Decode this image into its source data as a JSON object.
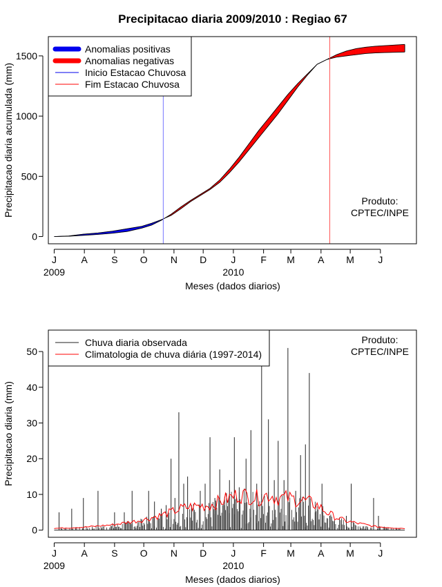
{
  "title": "Precipitacao diaria 2009/2010 : Regiao 67",
  "credit": {
    "line1": "Produto:",
    "line2": "CPTEC/INPE"
  },
  "months": [
    "J",
    "A",
    "S",
    "O",
    "N",
    "D",
    "J",
    "F",
    "M",
    "A",
    "M",
    "J"
  ],
  "years": [
    {
      "label": "2009",
      "month_index": 0
    },
    {
      "label": "2010",
      "month_index": 6
    }
  ],
  "colors": {
    "positive": "#0000ee",
    "negative": "#ff0000",
    "observed": "#222222",
    "climatology": "#ff0000",
    "onset": "#7777ff",
    "end": "#ff5555"
  },
  "chart_data": [
    {
      "type": "area",
      "title": "Precipitacao diaria 2009/2010 : Regiao 67",
      "xlabel": "Meses (dados diarios)",
      "ylabel": "Precipitacao diaria acumulada (mm)",
      "yticks": [
        0,
        500,
        1000,
        1500
      ],
      "ylim": [
        -60,
        1660
      ],
      "xlim_days": [
        -6,
        372
      ],
      "legend": [
        "Anomalias positivas",
        "Anomalias negativas",
        "Inicio Estacao Chuvosa",
        "Fim Estacao Chuvosa"
      ],
      "onset_day": 112,
      "end_day": 283,
      "observed_cumulative": {
        "days": [
          0,
          15,
          30,
          45,
          60,
          75,
          90,
          100,
          110,
          120,
          130,
          140,
          150,
          160,
          170,
          180,
          190,
          200,
          210,
          220,
          230,
          240,
          250,
          260,
          270,
          280,
          290,
          300,
          310,
          320,
          330,
          340,
          350,
          360
        ],
        "values": [
          0,
          5,
          20,
          30,
          45,
          65,
          85,
          110,
          140,
          175,
          230,
          290,
          340,
          390,
          450,
          530,
          620,
          720,
          820,
          920,
          1020,
          1130,
          1240,
          1340,
          1430,
          1470,
          1490,
          1500,
          1510,
          1520,
          1525,
          1528,
          1530,
          1532
        ]
      },
      "climatology_cumulative": {
        "days": [
          0,
          15,
          30,
          45,
          60,
          75,
          90,
          100,
          110,
          120,
          130,
          140,
          150,
          160,
          170,
          180,
          190,
          200,
          210,
          220,
          230,
          240,
          250,
          260,
          270,
          280,
          290,
          300,
          310,
          320,
          330,
          340,
          350,
          360
        ],
        "values": [
          0,
          3,
          10,
          18,
          28,
          42,
          70,
          95,
          135,
          185,
          245,
          300,
          350,
          400,
          470,
          560,
          660,
          770,
          880,
          980,
          1080,
          1180,
          1270,
          1350,
          1430,
          1470,
          1510,
          1540,
          1560,
          1572,
          1580,
          1585,
          1590,
          1595
        ]
      }
    },
    {
      "type": "bar",
      "xlabel": "Meses (dados diarios)",
      "ylabel": "Precipitacao diaria (mm)",
      "yticks": [
        0,
        10,
        20,
        30,
        40,
        50
      ],
      "ylim": [
        -2,
        56
      ],
      "xlim_days": [
        -6,
        372
      ],
      "legend": [
        "Chuva diaria observada",
        "Climatologia de chuva diária (1997-2014)"
      ],
      "observed_peaks": {
        "days": [
          5,
          18,
          30,
          45,
          62,
          72,
          80,
          90,
          97,
          103,
          110,
          115,
          120,
          124,
          128,
          133,
          137,
          141,
          150,
          155,
          160,
          165,
          170,
          175,
          180,
          185,
          190,
          197,
          202,
          208,
          213,
          220,
          226,
          230,
          236,
          240,
          248,
          253,
          258,
          262,
          268,
          272,
          275,
          283,
          300,
          305,
          328,
          333
        ],
        "values": [
          5,
          6,
          9,
          11,
          5,
          5,
          11,
          3,
          11,
          8,
          6,
          7,
          20,
          9,
          33,
          13,
          15,
          7,
          11,
          13,
          26,
          9,
          17,
          7,
          14,
          26,
          12,
          20,
          28,
          13,
          54,
          31,
          14,
          25,
          14,
          51,
          11,
          21,
          24,
          44,
          5,
          3,
          13,
          4,
          4,
          13,
          9,
          4
        ]
      },
      "climatology": {
        "days": [
          0,
          30,
          60,
          90,
          100,
          110,
          120,
          130,
          140,
          150,
          160,
          170,
          180,
          185,
          190,
          200,
          210,
          220,
          230,
          240,
          250,
          260,
          270,
          280,
          290,
          300,
          310,
          320,
          330,
          340,
          350,
          360
        ],
        "values": [
          0.5,
          0.8,
          1.5,
          2.8,
          3.5,
          4.2,
          5.0,
          6.0,
          6.5,
          6.8,
          7.0,
          8.0,
          9.0,
          9.5,
          10.0,
          9.5,
          9.0,
          10.0,
          9.0,
          9.0,
          8.5,
          8.0,
          7.0,
          5.0,
          3.5,
          2.5,
          2.0,
          1.5,
          1.0,
          0.8,
          0.6,
          0.5
        ]
      }
    }
  ]
}
